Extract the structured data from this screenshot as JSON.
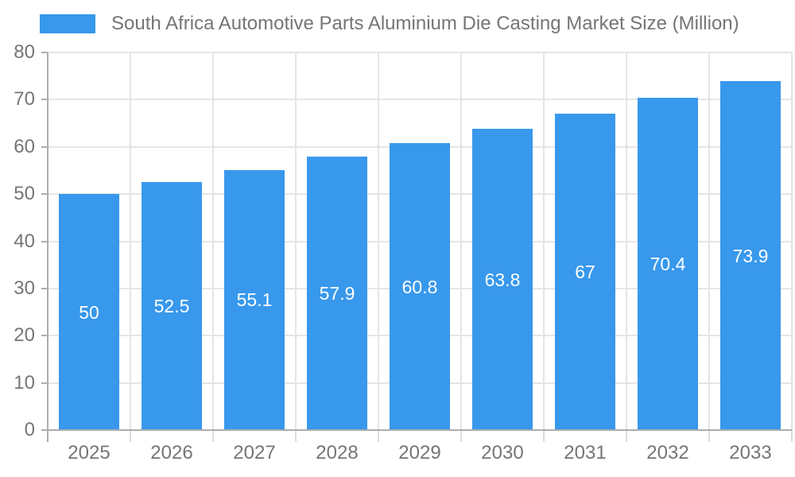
{
  "legend": {
    "label": "South Africa Automotive Parts Aluminium Die Casting Market Size (Million)"
  },
  "chart_data": {
    "type": "bar",
    "title": "South Africa Automotive Parts Aluminium Die Casting Market Size (Million)",
    "categories": [
      "2025",
      "2026",
      "2027",
      "2028",
      "2029",
      "2030",
      "2031",
      "2032",
      "2033"
    ],
    "values": [
      50,
      52.5,
      55.1,
      57.9,
      60.8,
      63.8,
      67,
      70.4,
      73.9
    ],
    "value_labels": [
      "50",
      "52.5",
      "55.1",
      "57.9",
      "60.8",
      "63.8",
      "67",
      "70.4",
      "73.9"
    ],
    "xlabel": "",
    "ylabel": "",
    "ylim": [
      0,
      80
    ],
    "ytick_step": 10,
    "ytick_labels": [
      "0",
      "10",
      "20",
      "30",
      "40",
      "50",
      "60",
      "70",
      "80"
    ],
    "grid": true,
    "legend_position": "top-left",
    "colors": {
      "bar": "#3898EC",
      "bar_label_text": "#FFFFFF",
      "tick_text": "#757575",
      "legend_text": "#757575",
      "grid_line": "#E5E5E5",
      "axis_line": "#ADADAD",
      "x_tick_mark": "#DCDCDC",
      "background": "#FFFFFF"
    }
  }
}
